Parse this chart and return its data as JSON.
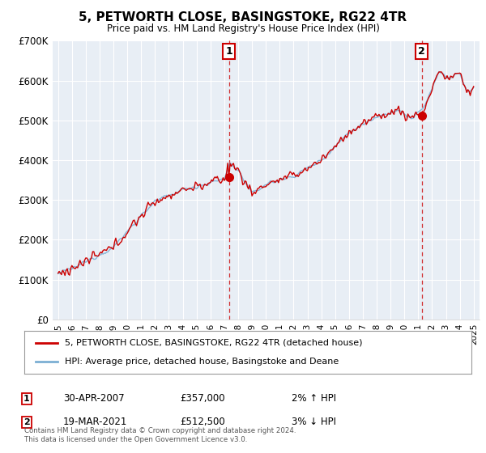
{
  "title": "5, PETWORTH CLOSE, BASINGSTOKE, RG22 4TR",
  "subtitle": "Price paid vs. HM Land Registry's House Price Index (HPI)",
  "legend_line1": "5, PETWORTH CLOSE, BASINGSTOKE, RG22 4TR (detached house)",
  "legend_line2": "HPI: Average price, detached house, Basingstoke and Deane",
  "annotation1_date": "30-APR-2007",
  "annotation1_price": "£357,000",
  "annotation1_hpi": "2% ↑ HPI",
  "annotation2_date": "19-MAR-2021",
  "annotation2_price": "£512,500",
  "annotation2_hpi": "3% ↓ HPI",
  "footer": "Contains HM Land Registry data © Crown copyright and database right 2024.\nThis data is licensed under the Open Government Licence v3.0.",
  "price_color": "#cc0000",
  "hpi_color": "#7bafd4",
  "annotation_box_color": "#cc0000",
  "chart_bg_color": "#e8eef5",
  "ylim": [
    0,
    700000
  ],
  "yticks": [
    0,
    100000,
    200000,
    300000,
    400000,
    500000,
    600000,
    700000
  ],
  "ytick_labels": [
    "£0",
    "£100K",
    "£200K",
    "£300K",
    "£400K",
    "£500K",
    "£600K",
    "£700K"
  ],
  "background_color": "#ffffff",
  "grid_color": "#ffffff",
  "t1_year": 2007.33,
  "t1_price": 357000,
  "t2_year": 2021.25,
  "t2_price": 512500,
  "xstart": 1995,
  "xend": 2025
}
